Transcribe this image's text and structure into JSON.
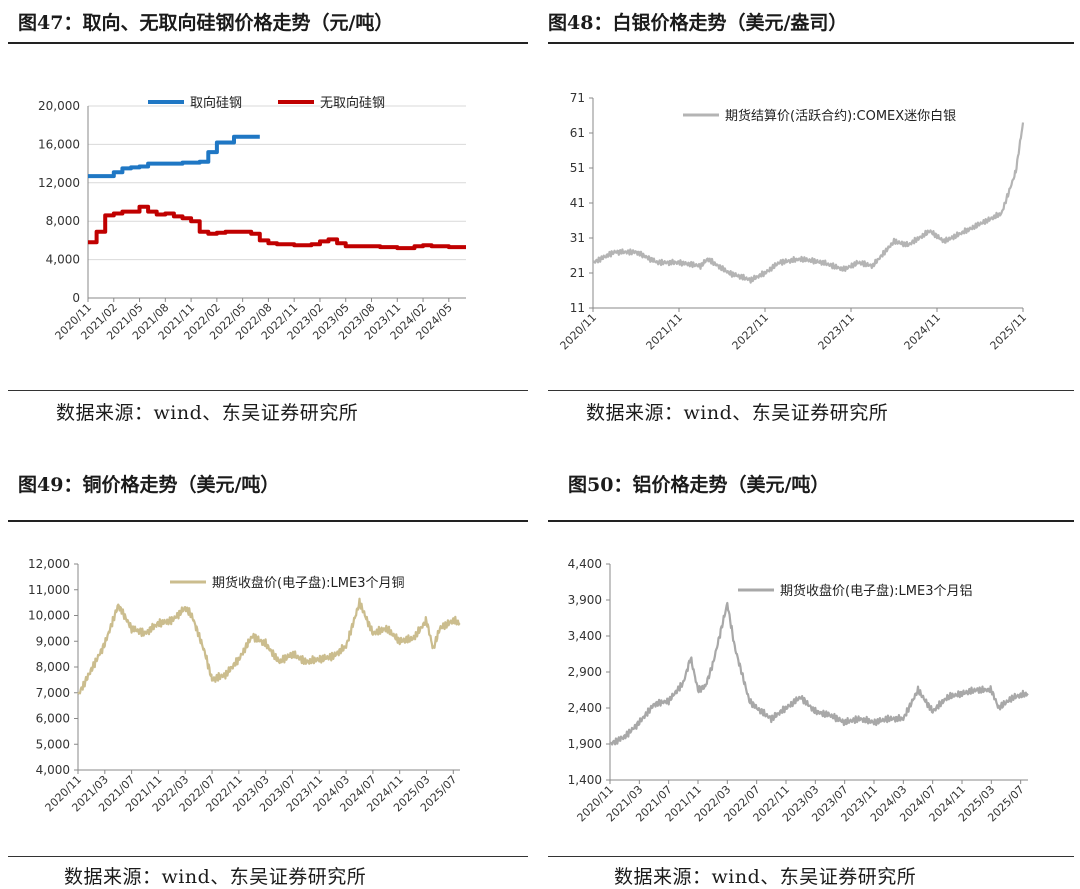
{
  "source_text": "数据来源：wind、东吴证券研究所",
  "charts": [
    {
      "title": "图47：取向、无取向硅钢价格走势（元/吨）",
      "chart_data": {
        "type": "line",
        "title": "图47：取向、无取向硅钢价格走势（元/吨）",
        "ylim": [
          0,
          20000
        ],
        "yticks": [
          "0",
          "4,000",
          "8,000",
          "12,000",
          "16,000",
          "20,000"
        ],
        "ytick_values": [
          0,
          4000,
          8000,
          12000,
          16000,
          20000
        ],
        "xticks": [
          "2020/11",
          "2021/02",
          "2021/05",
          "2021/08",
          "2021/11",
          "2022/02",
          "2022/05",
          "2022/08",
          "2022/11",
          "2023/02",
          "2023/05",
          "2023/08",
          "2023/11",
          "2024/02",
          "2024/05"
        ],
        "x_range": [
          "2020/11",
          "2024/07"
        ],
        "legend_position": "top",
        "series": [
          {
            "name": "取向硅钢",
            "color": "#1f77c4",
            "points": [
              [
                "2020/11",
                12700
              ],
              [
                "2021/01",
                12700
              ],
              [
                "2021/02",
                13100
              ],
              [
                "2021/03",
                13500
              ],
              [
                "2021/04",
                13600
              ],
              [
                "2021/05",
                13700
              ],
              [
                "2021/06",
                14000
              ],
              [
                "2021/08",
                14000
              ],
              [
                "2021/10",
                14100
              ],
              [
                "2021/12",
                14200
              ],
              [
                "2022/01",
                15200
              ],
              [
                "2022/02",
                16200
              ],
              [
                "2022/03",
                16200
              ],
              [
                "2022/04",
                16800
              ],
              [
                "2022/07",
                16800
              ]
            ]
          },
          {
            "name": "无取向硅钢",
            "color": "#c00000",
            "points": [
              [
                "2020/11",
                5800
              ],
              [
                "2020/12",
                6900
              ],
              [
                "2021/01",
                8600
              ],
              [
                "2021/02",
                8800
              ],
              [
                "2021/03",
                9000
              ],
              [
                "2021/04",
                9000
              ],
              [
                "2021/05",
                9500
              ],
              [
                "2021/06",
                9000
              ],
              [
                "2021/07",
                8700
              ],
              [
                "2021/08",
                8800
              ],
              [
                "2021/09",
                8500
              ],
              [
                "2021/10",
                8300
              ],
              [
                "2021/11",
                8000
              ],
              [
                "2021/12",
                6900
              ],
              [
                "2022/01",
                6700
              ],
              [
                "2022/02",
                6800
              ],
              [
                "2022/03",
                6900
              ],
              [
                "2022/05",
                6900
              ],
              [
                "2022/06",
                6700
              ],
              [
                "2022/07",
                6000
              ],
              [
                "2022/08",
                5700
              ],
              [
                "2022/09",
                5600
              ],
              [
                "2022/11",
                5500
              ],
              [
                "2023/01",
                5600
              ],
              [
                "2023/02",
                5900
              ],
              [
                "2023/03",
                6100
              ],
              [
                "2023/04",
                5700
              ],
              [
                "2023/05",
                5400
              ],
              [
                "2023/07",
                5400
              ],
              [
                "2023/09",
                5300
              ],
              [
                "2023/11",
                5200
              ],
              [
                "2024/01",
                5400
              ],
              [
                "2024/02",
                5500
              ],
              [
                "2024/03",
                5400
              ],
              [
                "2024/05",
                5300
              ],
              [
                "2024/07",
                5300
              ]
            ]
          }
        ]
      }
    },
    {
      "title": "图48：白银价格走势（美元/盎司）",
      "chart_data": {
        "type": "line",
        "title": "图48：白银价格走势（美元/盎司）",
        "ylim": [
          11,
          71
        ],
        "yticks": [
          "11",
          "21",
          "31",
          "41",
          "51",
          "61",
          "71"
        ],
        "ytick_values": [
          11,
          21,
          31,
          41,
          51,
          61,
          71
        ],
        "xticks": [
          "2020/11",
          "2021/11",
          "2022/11",
          "2023/11",
          "2024/11",
          "2025/11"
        ],
        "x_range": [
          "2020/11",
          "2025/11"
        ],
        "legend_position": "top",
        "series": [
          {
            "name": "期货结算价(活跃合约):COMEX迷你白银",
            "color": "#b4b4b4",
            "points": [
              [
                "2020/11",
                24
              ],
              [
                "2021/02",
                27
              ],
              [
                "2021/05",
                27
              ],
              [
                "2021/08",
                24
              ],
              [
                "2021/11",
                24
              ],
              [
                "2022/02",
                23
              ],
              [
                "2022/03",
                25
              ],
              [
                "2022/06",
                21
              ],
              [
                "2022/09",
                19
              ],
              [
                "2022/11",
                21
              ],
              [
                "2023/01",
                24
              ],
              [
                "2023/04",
                25
              ],
              [
                "2023/07",
                24
              ],
              [
                "2023/10",
                22
              ],
              [
                "2023/12",
                24
              ],
              [
                "2024/02",
                23
              ],
              [
                "2024/05",
                30
              ],
              [
                "2024/07",
                29
              ],
              [
                "2024/10",
                33
              ],
              [
                "2024/12",
                30
              ],
              [
                "2025/03",
                33
              ],
              [
                "2025/06",
                36
              ],
              [
                "2025/08",
                38
              ],
              [
                "2025/10",
                50
              ],
              [
                "2025/11",
                64
              ]
            ]
          }
        ]
      }
    },
    {
      "title": "图49：铜价格走势（美元/吨）",
      "chart_data": {
        "type": "line",
        "title": "图49：铜价格走势（美元/吨）",
        "ylim": [
          4000,
          12000
        ],
        "yticks": [
          "4,000",
          "5,000",
          "6,000",
          "7,000",
          "8,000",
          "9,000",
          "10,000",
          "11,000",
          "12,000"
        ],
        "ytick_values": [
          4000,
          5000,
          6000,
          7000,
          8000,
          9000,
          10000,
          11000,
          12000
        ],
        "xticks": [
          "2020/11",
          "2021/03",
          "2021/07",
          "2021/11",
          "2022/03",
          "2022/07",
          "2022/11",
          "2023/03",
          "2023/07",
          "2023/11",
          "2024/03",
          "2024/07",
          "2024/11",
          "2025/03",
          "2025/07"
        ],
        "x_range": [
          "2020/11",
          "2025/08"
        ],
        "legend_position": "top",
        "series": [
          {
            "name": "期货收盘价(电子盘):LME3个月铜",
            "color": "#cbbd8e",
            "points": [
              [
                "2020/11",
                6900
              ],
              [
                "2021/01",
                7900
              ],
              [
                "2021/03",
                8900
              ],
              [
                "2021/05",
                10400
              ],
              [
                "2021/07",
                9500
              ],
              [
                "2021/09",
                9300
              ],
              [
                "2021/11",
                9700
              ],
              [
                "2022/01",
                9800
              ],
              [
                "2022/03",
                10300
              ],
              [
                "2022/04",
                10000
              ],
              [
                "2022/06",
                8500
              ],
              [
                "2022/07",
                7500
              ],
              [
                "2022/09",
                7700
              ],
              [
                "2022/11",
                8300
              ],
              [
                "2023/01",
                9200
              ],
              [
                "2023/03",
                8900
              ],
              [
                "2023/05",
                8200
              ],
              [
                "2023/07",
                8500
              ],
              [
                "2023/09",
                8200
              ],
              [
                "2023/11",
                8300
              ],
              [
                "2024/01",
                8400
              ],
              [
                "2024/03",
                8800
              ],
              [
                "2024/05",
                10500
              ],
              [
                "2024/07",
                9300
              ],
              [
                "2024/09",
                9500
              ],
              [
                "2024/11",
                9000
              ],
              [
                "2025/01",
                9100
              ],
              [
                "2025/03",
                9800
              ],
              [
                "2025/04",
                8700
              ],
              [
                "2025/05",
                9500
              ],
              [
                "2025/07",
                9800
              ],
              [
                "2025/08",
                9700
              ]
            ]
          }
        ]
      }
    },
    {
      "title": "图50：铝价格走势（美元/吨）",
      "chart_data": {
        "type": "line",
        "title": "图50：铝价格走势（美元/吨）",
        "ylim": [
          1400,
          4400
        ],
        "yticks": [
          "1,400",
          "1,900",
          "2,400",
          "2,900",
          "3,400",
          "3,900",
          "4,400"
        ],
        "ytick_values": [
          1400,
          1900,
          2400,
          2900,
          3400,
          3900,
          4400
        ],
        "xticks": [
          "2020/11",
          "2021/03",
          "2021/07",
          "2021/11",
          "2022/03",
          "2022/07",
          "2022/11",
          "2023/03",
          "2023/07",
          "2023/11",
          "2024/03",
          "2024/07",
          "2024/11",
          "2025/03",
          "2025/07"
        ],
        "x_range": [
          "2020/11",
          "2025/08"
        ],
        "legend_position": "top",
        "series": [
          {
            "name": "期货收盘价(电子盘):LME3个月铝",
            "color": "#a8a8a8",
            "points": [
              [
                "2020/11",
                1900
              ],
              [
                "2021/01",
                2000
              ],
              [
                "2021/03",
                2200
              ],
              [
                "2021/05",
                2450
              ],
              [
                "2021/07",
                2500
              ],
              [
                "2021/09",
                2750
              ],
              [
                "2021/10",
                3100
              ],
              [
                "2021/11",
                2650
              ],
              [
                "2021/12",
                2700
              ],
              [
                "2022/01",
                3000
              ],
              [
                "2022/03",
                3850
              ],
              [
                "2022/04",
                3250
              ],
              [
                "2022/06",
                2500
              ],
              [
                "2022/07",
                2400
              ],
              [
                "2022/09",
                2250
              ],
              [
                "2022/11",
                2400
              ],
              [
                "2023/01",
                2550
              ],
              [
                "2023/03",
                2350
              ],
              [
                "2023/05",
                2300
              ],
              [
                "2023/07",
                2200
              ],
              [
                "2023/09",
                2250
              ],
              [
                "2023/11",
                2200
              ],
              [
                "2024/01",
                2250
              ],
              [
                "2024/03",
                2250
              ],
              [
                "2024/05",
                2650
              ],
              [
                "2024/07",
                2350
              ],
              [
                "2024/09",
                2550
              ],
              [
                "2024/11",
                2600
              ],
              [
                "2025/01",
                2650
              ],
              [
                "2025/03",
                2650
              ],
              [
                "2025/04",
                2400
              ],
              [
                "2025/06",
                2550
              ],
              [
                "2025/08",
                2600
              ]
            ]
          }
        ]
      }
    }
  ]
}
